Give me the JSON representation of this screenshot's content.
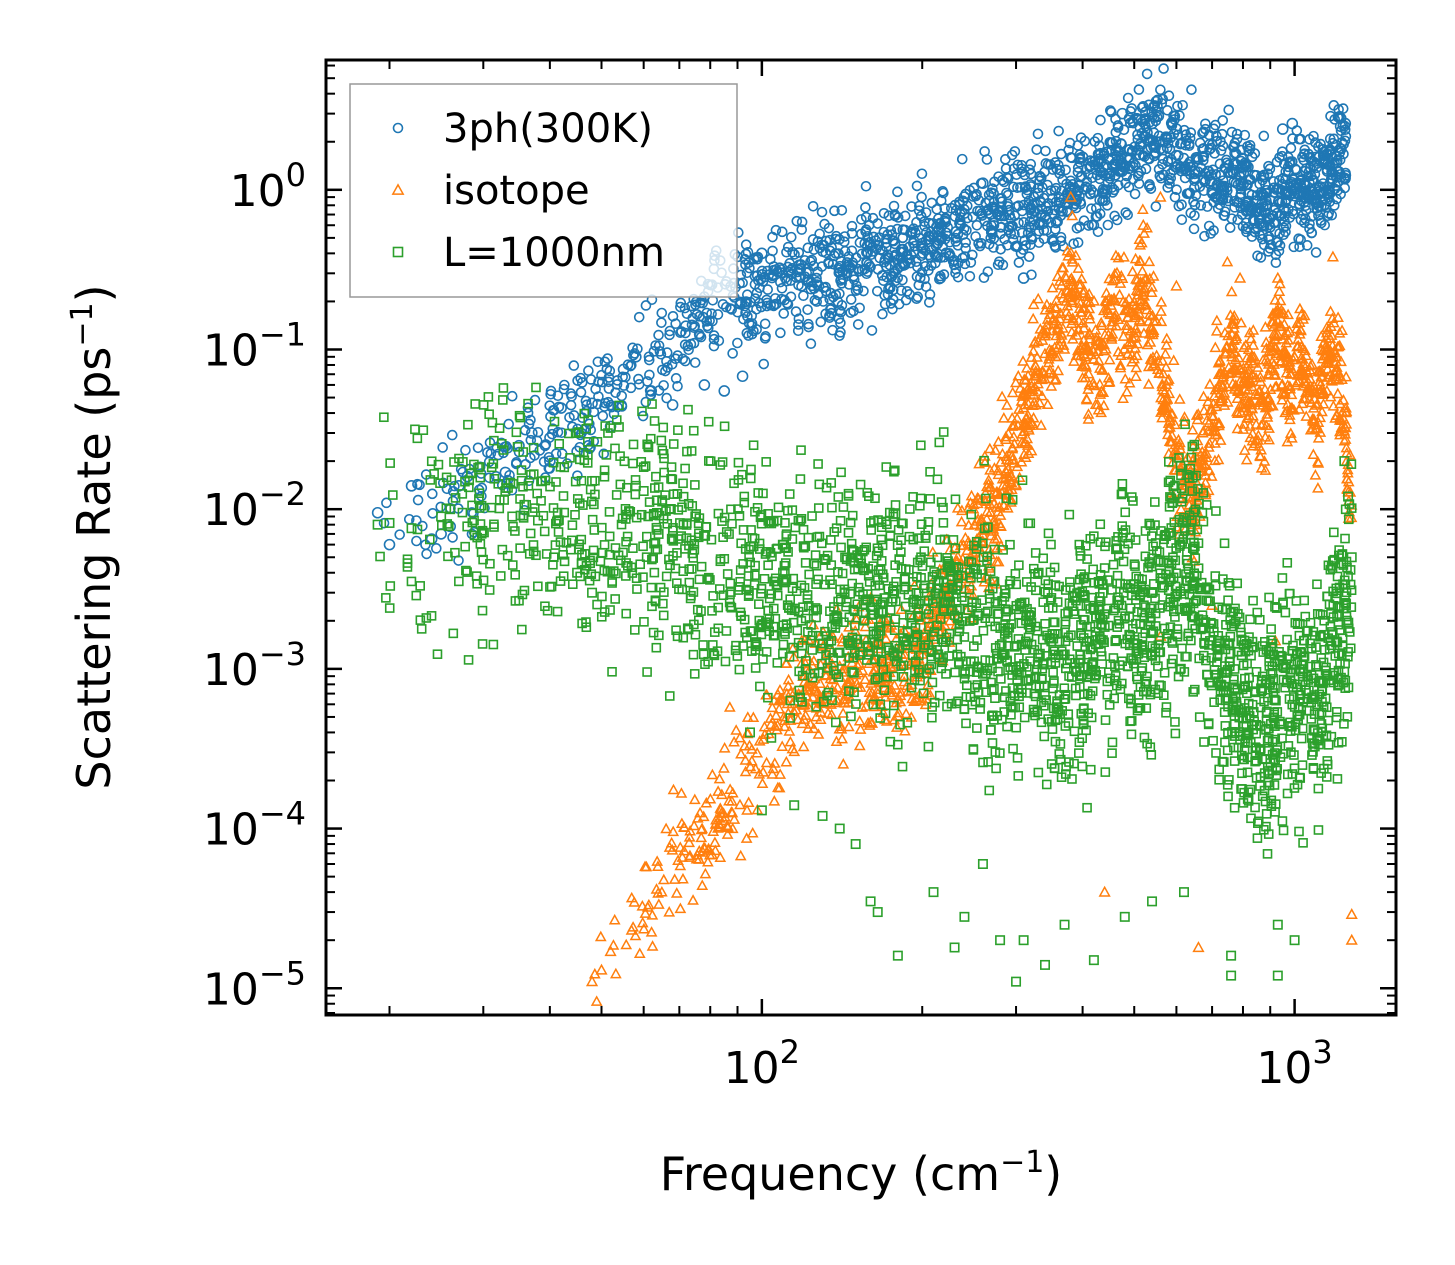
{
  "chart_data": {
    "type": "scatter",
    "title": "",
    "xlabel": "Frequency (cm",
    "xlabel_sup": "−1",
    "xlabel_end": ")",
    "ylabel": "Scattering Rate (ps",
    "ylabel_sup": "−1",
    "ylabel_end": ")",
    "xscale": "log",
    "yscale": "log",
    "xlim": [
      15.2,
      1550
    ],
    "ylim": [
      6.8e-06,
      6.5
    ],
    "legend_position": "top-left",
    "x_ticks": [
      {
        "value": 100,
        "base": "10",
        "exp": "2"
      },
      {
        "value": 1000,
        "base": "10",
        "exp": "3"
      }
    ],
    "y_ticks": [
      {
        "value": 1e-05,
        "base": "10",
        "exp": "−5"
      },
      {
        "value": 0.0001,
        "base": "10",
        "exp": "−4"
      },
      {
        "value": 0.001,
        "base": "10",
        "exp": "−3"
      },
      {
        "value": 0.01,
        "base": "10",
        "exp": "−2"
      },
      {
        "value": 0.1,
        "base": "10",
        "exp": "−1"
      },
      {
        "value": 1,
        "base": "10",
        "exp": "0"
      }
    ],
    "series": [
      {
        "name": "3ph(300K)",
        "marker": "circle",
        "color": "#1f77b4",
        "envelope": [
          [
            19,
            0.008
          ],
          [
            22,
            0.012
          ],
          [
            28,
            0.012
          ],
          [
            33,
            0.018
          ],
          [
            40,
            0.03
          ],
          [
            48,
            0.045
          ],
          [
            55,
            0.06
          ],
          [
            62,
            0.09
          ],
          [
            70,
            0.12
          ],
          [
            80,
            0.18
          ],
          [
            90,
            0.2
          ],
          [
            100,
            0.22
          ],
          [
            120,
            0.3
          ],
          [
            150,
            0.32
          ],
          [
            180,
            0.4
          ],
          [
            200,
            0.45
          ],
          [
            230,
            0.55
          ],
          [
            250,
            0.65
          ],
          [
            300,
            0.7
          ],
          [
            330,
            0.75
          ],
          [
            380,
            1.0
          ],
          [
            420,
            1.1
          ],
          [
            460,
            1.5
          ],
          [
            500,
            1.8
          ],
          [
            540,
            2.2
          ],
          [
            580,
            1.8
          ],
          [
            650,
            1.4
          ],
          [
            720,
            1.3
          ],
          [
            780,
            1.25
          ],
          [
            920,
            0.7
          ],
          [
            980,
            1.2
          ],
          [
            1050,
            1.0
          ],
          [
            1150,
            1.2
          ],
          [
            1250,
            1.8
          ]
        ],
        "spread": 0.28,
        "points": [
          {
            "x": 19,
            "y": 0.0095
          },
          {
            "x": 20,
            "y": 0.006
          },
          {
            "x": 22,
            "y": 0.014
          },
          {
            "x": 24,
            "y": 0.0065
          },
          {
            "x": 25,
            "y": 0.007
          },
          {
            "x": 26,
            "y": 0.0078
          },
          {
            "x": 27,
            "y": 0.014
          },
          {
            "x": 28,
            "y": 0.016
          },
          {
            "x": 32,
            "y": 0.022
          },
          {
            "x": 33,
            "y": 0.017
          },
          {
            "x": 35,
            "y": 0.025
          },
          {
            "x": 37,
            "y": 0.03
          },
          {
            "x": 40,
            "y": 0.02
          },
          {
            "x": 42,
            "y": 0.043
          },
          {
            "x": 45,
            "y": 0.023
          },
          {
            "x": 48,
            "y": 0.046
          },
          {
            "x": 52,
            "y": 0.033
          },
          {
            "x": 55,
            "y": 0.075
          },
          {
            "x": 58,
            "y": 0.09
          },
          {
            "x": 62,
            "y": 0.055
          },
          {
            "x": 68,
            "y": 0.045
          },
          {
            "x": 72,
            "y": 0.14
          },
          {
            "x": 78,
            "y": 0.06
          },
          {
            "x": 85,
            "y": 0.055
          },
          {
            "x": 92,
            "y": 0.068
          },
          {
            "x": 100,
            "y": 0.4
          },
          {
            "x": 160,
            "y": 0.45
          },
          {
            "x": 240,
            "y": 0.9
          },
          {
            "x": 260,
            "y": 1.1
          },
          {
            "x": 310,
            "y": 0.28
          },
          {
            "x": 330,
            "y": 0.95
          },
          {
            "x": 400,
            "y": 1.6
          },
          {
            "x": 475,
            "y": 3.0
          },
          {
            "x": 490,
            "y": 2.8
          },
          {
            "x": 540,
            "y": 2.6
          },
          {
            "x": 555,
            "y": 2.9
          },
          {
            "x": 600,
            "y": 2.4
          },
          {
            "x": 920,
            "y": 0.55
          },
          {
            "x": 950,
            "y": 2.4
          },
          {
            "x": 990,
            "y": 2.6
          },
          {
            "x": 1030,
            "y": 0.65
          },
          {
            "x": 1220,
            "y": 2.5
          },
          {
            "x": 1245,
            "y": 2.6
          }
        ]
      },
      {
        "name": "isotope",
        "marker": "triangle",
        "color": "#ff7f0e",
        "envelope": [
          [
            48,
            1.2e-05
          ],
          [
            55,
            2e-05
          ],
          [
            65,
            5e-05
          ],
          [
            80,
            0.0001
          ],
          [
            95,
            0.00025
          ],
          [
            110,
            0.0005
          ],
          [
            130,
            0.0008
          ],
          [
            150,
            0.0009
          ],
          [
            180,
            0.001
          ],
          [
            200,
            0.0012
          ],
          [
            220,
            0.0028
          ],
          [
            250,
            0.006
          ],
          [
            280,
            0.012
          ],
          [
            300,
            0.03
          ],
          [
            330,
            0.08
          ],
          [
            360,
            0.15
          ],
          [
            380,
            0.25
          ],
          [
            400,
            0.12
          ],
          [
            430,
            0.08
          ],
          [
            460,
            0.2
          ],
          [
            490,
            0.12
          ],
          [
            520,
            0.3
          ],
          [
            560,
            0.08
          ],
          [
            600,
            0.02
          ],
          [
            640,
            0.012
          ],
          [
            700,
            0.03
          ],
          [
            760,
            0.12
          ],
          [
            790,
            0.06
          ],
          [
            880,
            0.04
          ],
          [
            930,
            0.15
          ],
          [
            980,
            0.05
          ],
          [
            1020,
            0.12
          ],
          [
            1100,
            0.03
          ],
          [
            1150,
            0.12
          ],
          [
            1220,
            0.06
          ],
          [
            1280,
            0.01
          ]
        ],
        "spread": 0.32,
        "points": [
          {
            "x": 48,
            "y": 1.1e-05
          },
          {
            "x": 50,
            "y": 1.3e-05
          },
          {
            "x": 52,
            "y": 1.7e-05
          },
          {
            "x": 380,
            "y": 0.9
          },
          {
            "x": 520,
            "y": 0.6
          },
          {
            "x": 560,
            "y": 0.9
          },
          {
            "x": 600,
            "y": 0.25
          },
          {
            "x": 650,
            "y": 0.008
          },
          {
            "x": 700,
            "y": 0.0025
          },
          {
            "x": 790,
            "y": 0.28
          },
          {
            "x": 930,
            "y": 0.28
          },
          {
            "x": 1180,
            "y": 0.38
          },
          {
            "x": 1280,
            "y": 2.9e-05
          },
          {
            "x": 1280,
            "y": 2e-05
          },
          {
            "x": 560,
            "y": 0.0016
          },
          {
            "x": 440,
            "y": 4e-05
          },
          {
            "x": 660,
            "y": 1.8e-05
          },
          {
            "x": 920,
            "y": 0.0015
          }
        ]
      },
      {
        "name": "L=1000nm",
        "marker": "square",
        "color": "#2ca02c",
        "envelope": [
          [
            19,
            0.008
          ],
          [
            25,
            0.009
          ],
          [
            33,
            0.009
          ],
          [
            45,
            0.008
          ],
          [
            55,
            0.008
          ],
          [
            65,
            0.007
          ],
          [
            80,
            0.005
          ],
          [
            95,
            0.004
          ],
          [
            110,
            0.003
          ],
          [
            130,
            0.0025
          ],
          [
            160,
            0.003
          ],
          [
            200,
            0.003
          ],
          [
            250,
            0.002
          ],
          [
            300,
            0.0015
          ],
          [
            350,
            0.0012
          ],
          [
            400,
            0.0012
          ],
          [
            450,
            0.002
          ],
          [
            520,
            0.002
          ],
          [
            600,
            0.004
          ],
          [
            650,
            0.005
          ],
          [
            700,
            0.0015
          ],
          [
            760,
            0.0007
          ],
          [
            900,
            0.0004
          ],
          [
            950,
            0.0008
          ],
          [
            1000,
            0.0007
          ],
          [
            1100,
            0.0006
          ],
          [
            1200,
            0.0015
          ],
          [
            1280,
            0.003
          ]
        ],
        "spread": 0.42,
        "points": [
          {
            "x": 19,
            "y": 0.008
          },
          {
            "x": 20,
            "y": 0.0082
          },
          {
            "x": 22,
            "y": 0.0076
          },
          {
            "x": 25,
            "y": 0.009
          },
          {
            "x": 26,
            "y": 0.01
          },
          {
            "x": 28,
            "y": 0.0078
          },
          {
            "x": 33,
            "y": 0.013
          },
          {
            "x": 34,
            "y": 0.009
          },
          {
            "x": 38,
            "y": 0.0085
          },
          {
            "x": 45,
            "y": 0.004
          },
          {
            "x": 48,
            "y": 0.003
          },
          {
            "x": 48,
            "y": 0.015
          },
          {
            "x": 58,
            "y": 0.014
          },
          {
            "x": 60,
            "y": 0.013
          },
          {
            "x": 64,
            "y": 0.007
          },
          {
            "x": 75,
            "y": 0.009
          },
          {
            "x": 95,
            "y": 0.0004
          },
          {
            "x": 100,
            "y": 0.00013
          },
          {
            "x": 115,
            "y": 0.00014
          },
          {
            "x": 130,
            "y": 0.00012
          },
          {
            "x": 140,
            "y": 0.0001
          },
          {
            "x": 150,
            "y": 8e-05
          },
          {
            "x": 160,
            "y": 3.5e-05
          },
          {
            "x": 165,
            "y": 3e-05
          },
          {
            "x": 180,
            "y": 1.6e-05
          },
          {
            "x": 210,
            "y": 4e-05
          },
          {
            "x": 230,
            "y": 1.8e-05
          },
          {
            "x": 240,
            "y": 2.8e-05
          },
          {
            "x": 260,
            "y": 6e-05
          },
          {
            "x": 280,
            "y": 2e-05
          },
          {
            "x": 300,
            "y": 1.1e-05
          },
          {
            "x": 310,
            "y": 2e-05
          },
          {
            "x": 340,
            "y": 1.4e-05
          },
          {
            "x": 370,
            "y": 2.5e-05
          },
          {
            "x": 420,
            "y": 1.5e-05
          },
          {
            "x": 480,
            "y": 2.8e-05
          },
          {
            "x": 540,
            "y": 3.5e-05
          },
          {
            "x": 620,
            "y": 4e-05
          },
          {
            "x": 760,
            "y": 1.6e-05
          },
          {
            "x": 760,
            "y": 1.2e-05
          },
          {
            "x": 930,
            "y": 1.2e-05
          },
          {
            "x": 930,
            "y": 2.5e-05
          },
          {
            "x": 1000,
            "y": 2e-05
          },
          {
            "x": 1240,
            "y": 0.02
          },
          {
            "x": 1260,
            "y": 0.012
          },
          {
            "x": 1280,
            "y": 0.005
          }
        ]
      }
    ]
  }
}
